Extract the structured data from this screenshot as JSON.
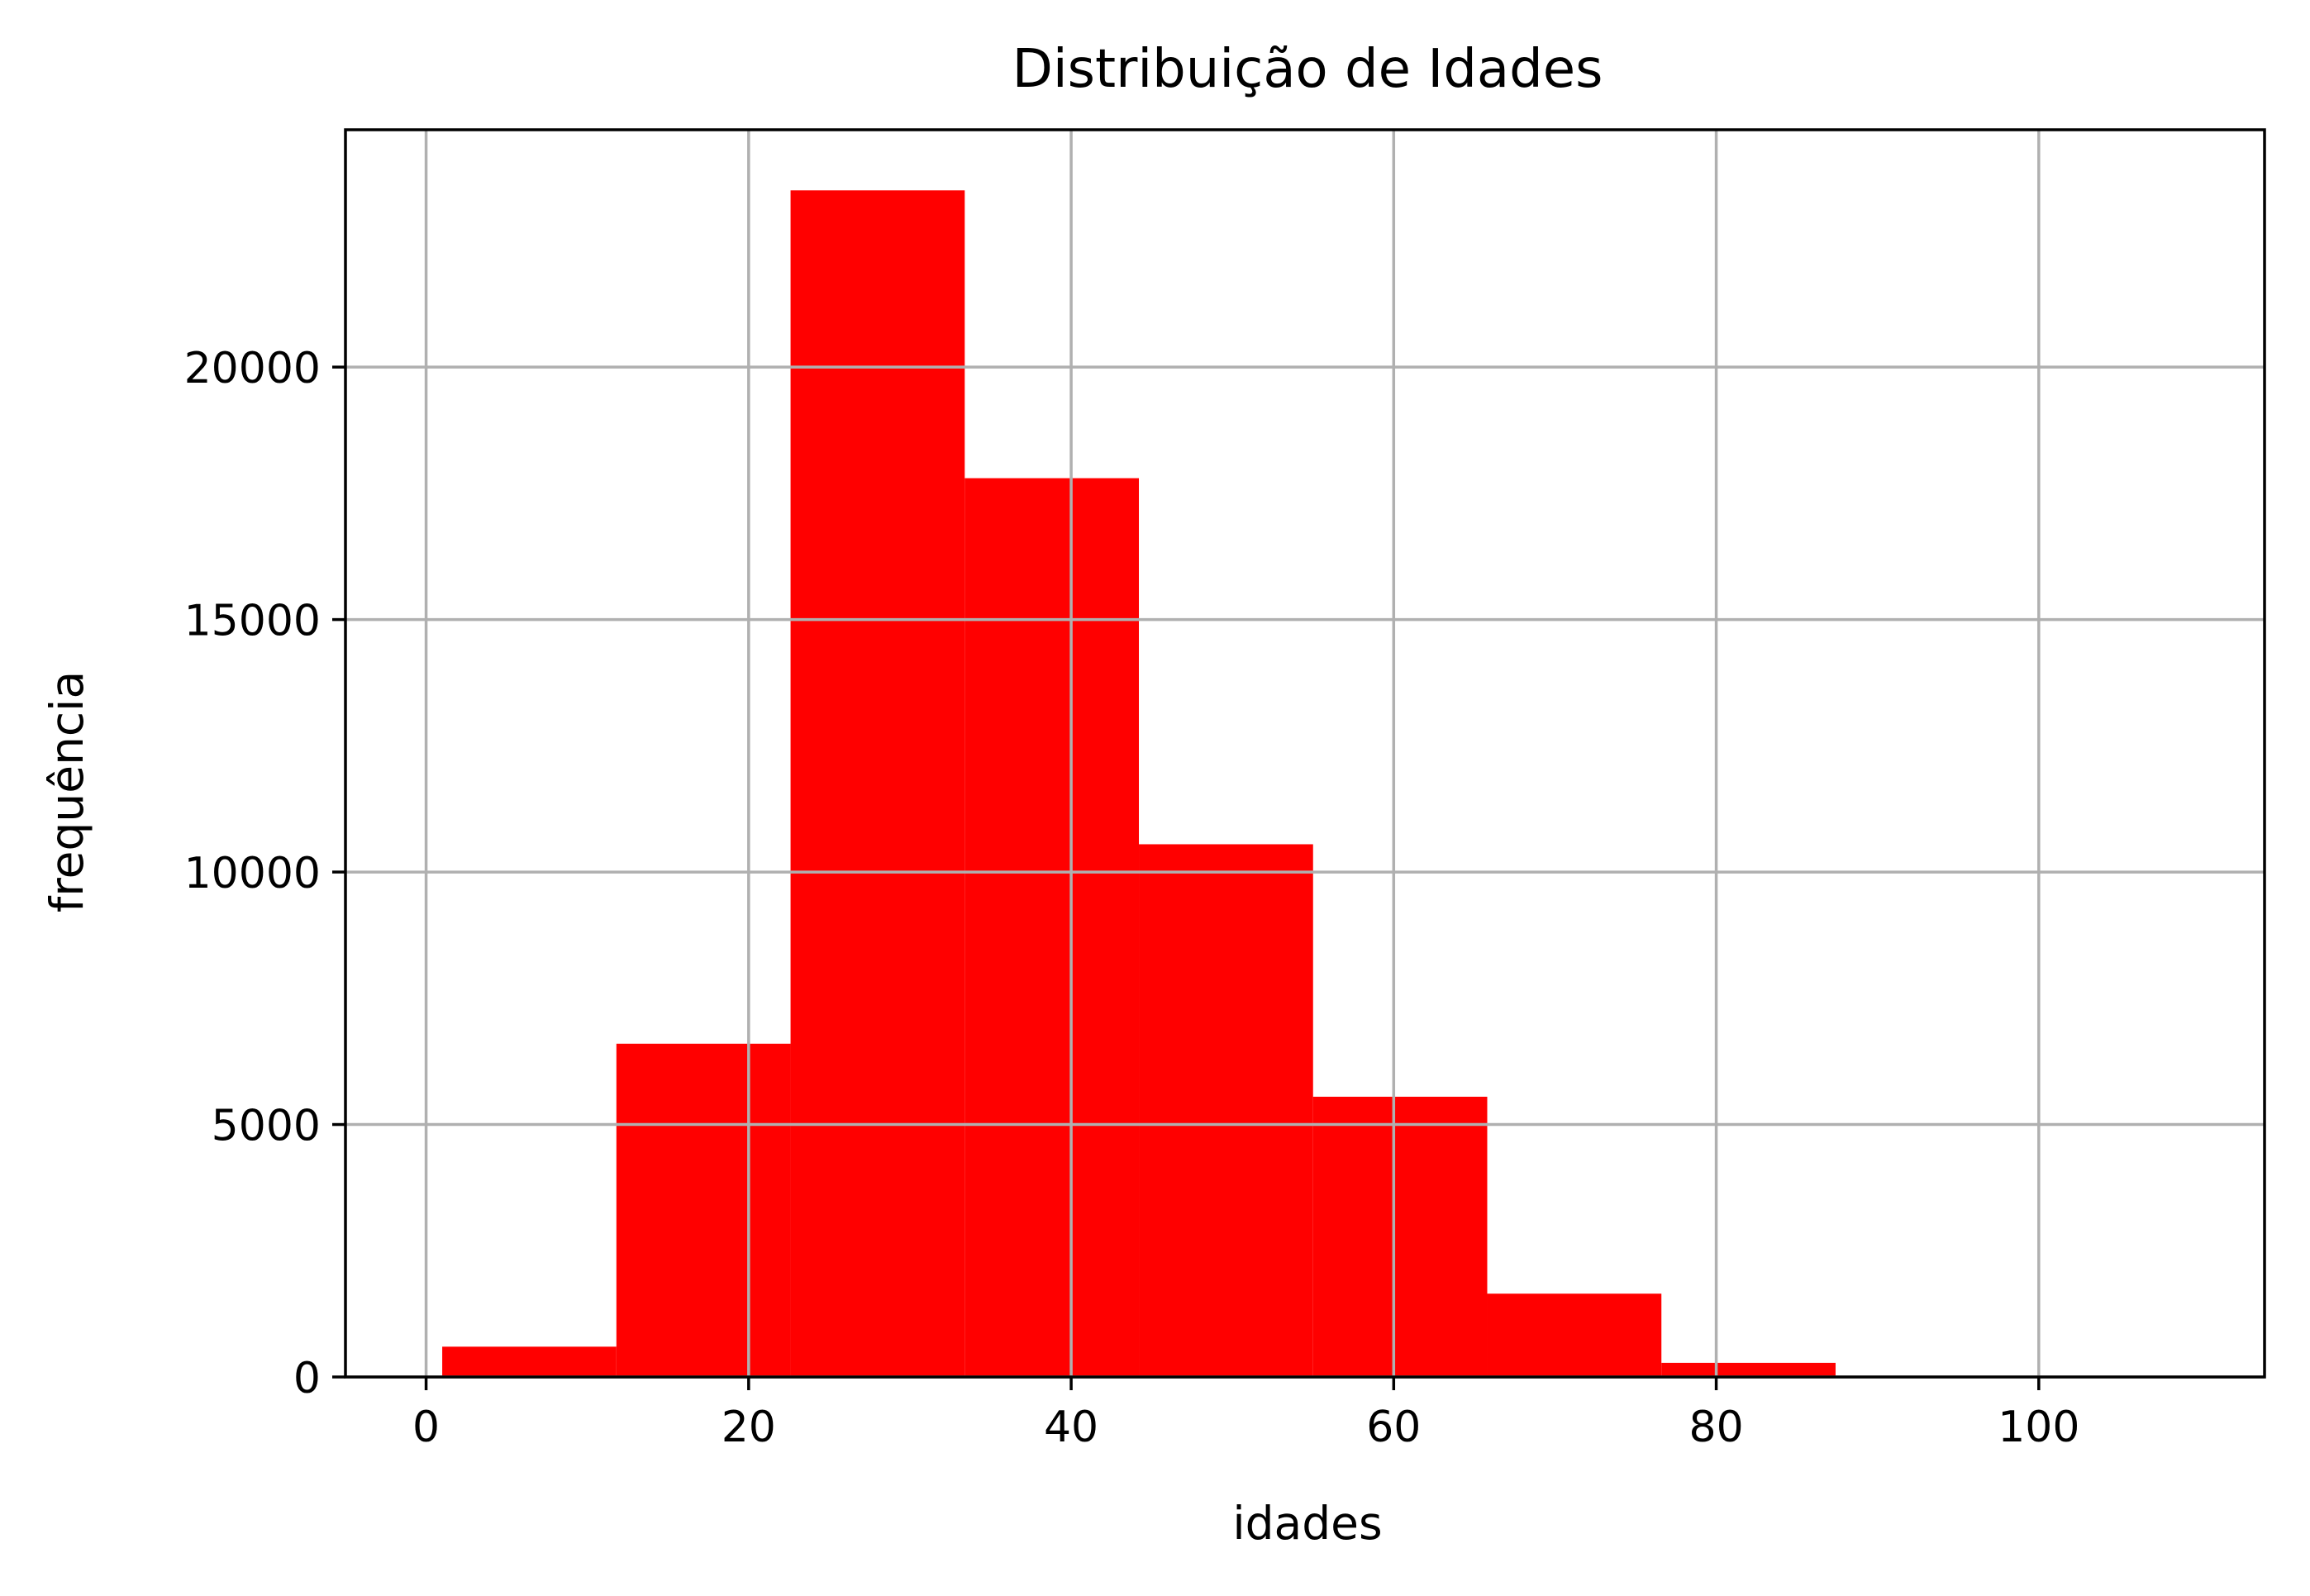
{
  "chart_data": {
    "type": "bar",
    "title": "Distribuição de Idades",
    "xlabel": "idades",
    "ylabel": "frequência",
    "xlim": [
      -5,
      114
    ],
    "ylim": [
      0,
      24700
    ],
    "xticks": [
      0,
      20,
      40,
      60,
      80,
      100
    ],
    "yticks": [
      0,
      5000,
      10000,
      15000,
      20000
    ],
    "grid": true,
    "bar_color": "#ff0000",
    "grid_color": "#b0b0b0",
    "bins": [
      {
        "start": 1.0,
        "end": 11.8,
        "value": 600
      },
      {
        "start": 11.8,
        "end": 22.6,
        "value": 6600
      },
      {
        "start": 22.6,
        "end": 33.4,
        "value": 23500
      },
      {
        "start": 33.4,
        "end": 44.2,
        "value": 17800
      },
      {
        "start": 44.2,
        "end": 55.0,
        "value": 10550
      },
      {
        "start": 55.0,
        "end": 65.8,
        "value": 5550
      },
      {
        "start": 65.8,
        "end": 76.6,
        "value": 1650
      },
      {
        "start": 76.6,
        "end": 87.4,
        "value": 280
      },
      {
        "start": 87.4,
        "end": 98.2,
        "value": 15
      },
      {
        "start": 98.2,
        "end": 109.0,
        "value": 3
      }
    ]
  }
}
